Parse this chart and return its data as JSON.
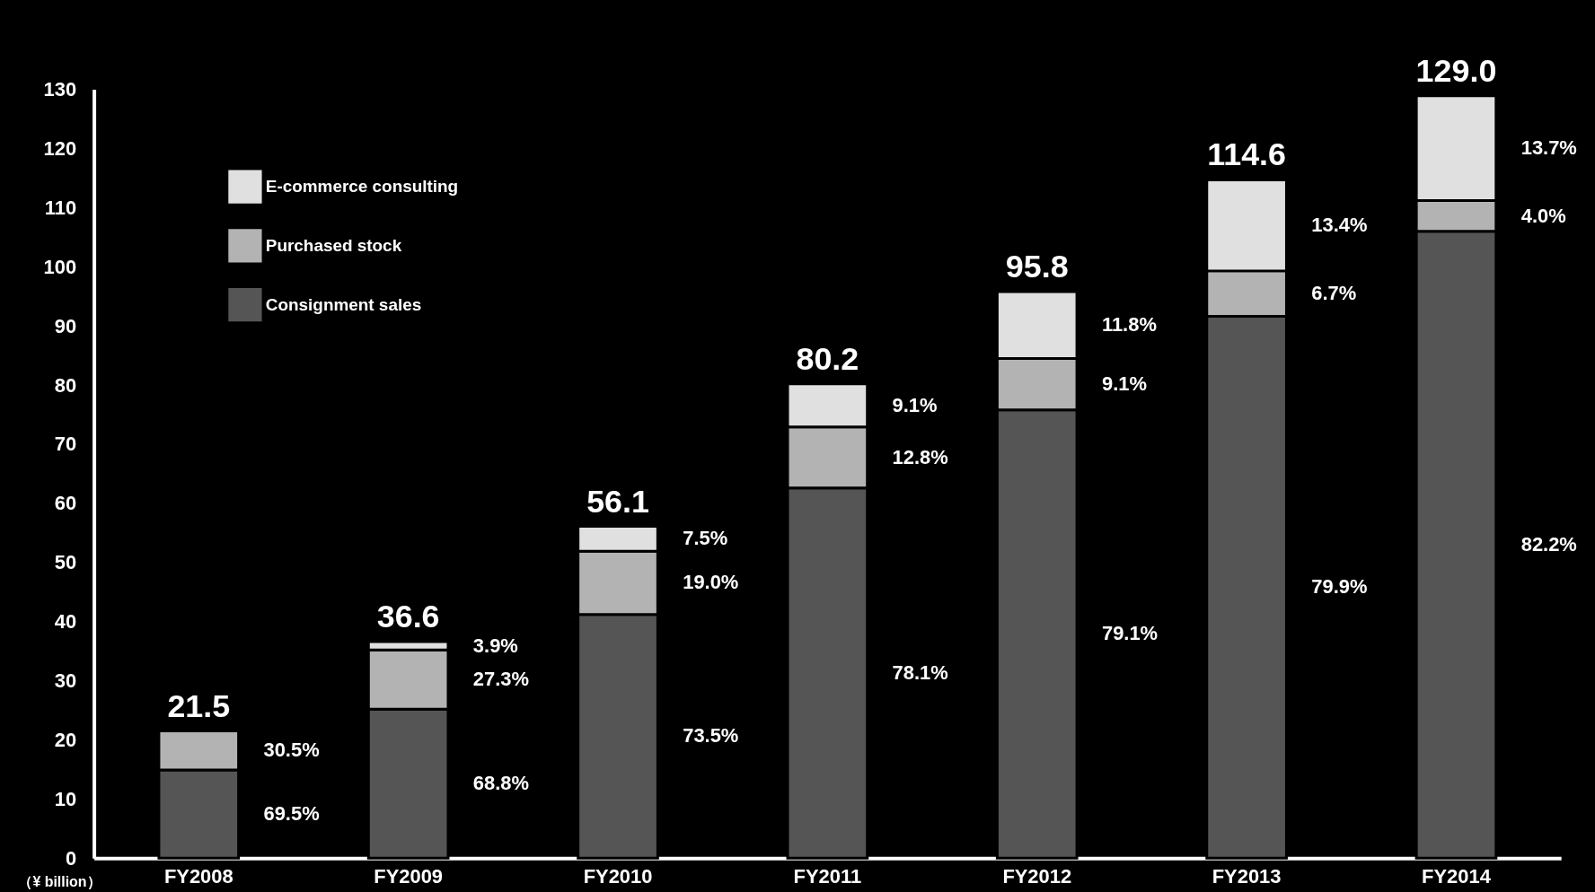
{
  "chart_data": {
    "type": "bar",
    "stacked": true,
    "ylabel": "（¥ billion）",
    "categories": [
      "FY2008",
      "FY2009",
      "FY2010",
      "FY2011",
      "FY2012",
      "FY2013",
      "FY2014"
    ],
    "series": [
      {
        "name": "Consignment sales",
        "color": "#555555",
        "values": [
          14.9,
          25.2,
          41.2,
          62.6,
          75.8,
          91.6,
          106.0
        ]
      },
      {
        "name": "Purchased stock",
        "color": "#b3b3b3",
        "values": [
          6.6,
          10.0,
          10.7,
          10.3,
          8.7,
          7.7,
          5.2
        ]
      },
      {
        "name": "E-commerce consulting",
        "color": "#e0e0e0",
        "values": [
          null,
          1.4,
          4.2,
          7.3,
          11.3,
          15.4,
          17.7
        ]
      }
    ],
    "totals": [
      "21.5",
      "36.6",
      "56.1",
      "80.2",
      "95.8",
      "114.6",
      "129.0"
    ],
    "annotations": [
      "69.5%",
      "30.5%",
      "68.8%",
      "27.3%",
      "3.9%",
      "73.5%",
      "19.0%",
      "7.5%",
      "78.1%",
      "12.8%",
      "9.1%",
      "79.1%",
      "9.1%",
      "11.8%",
      "79.9%",
      "6.7%",
      "13.4%",
      "82.2%",
      "4.0%",
      "13.7%"
    ],
    "ylim": [
      0,
      130
    ],
    "yticks": [
      0,
      10,
      20,
      30,
      40,
      50,
      60,
      70,
      80,
      90,
      100,
      110,
      120,
      130
    ],
    "grid": false,
    "legend": "top left"
  }
}
